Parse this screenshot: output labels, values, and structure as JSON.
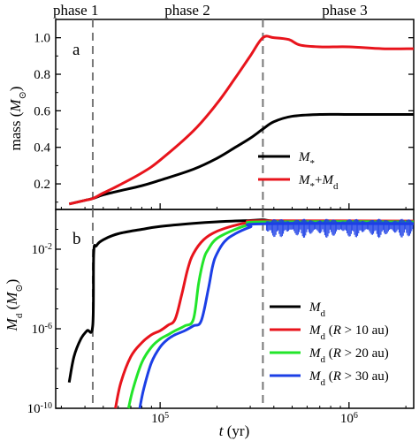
{
  "phases": [
    "phase 1",
    "phase 2",
    "phase 3"
  ],
  "colors": {
    "black": "#000000",
    "red": "#e8141c",
    "green": "#22e52a",
    "blue": "#1c3fe6",
    "dash": "#777777"
  },
  "chart_data": [
    {
      "type": "line",
      "panel": "a",
      "ylabel": "mass (M⊙)",
      "xscale": "log",
      "xlim": [
        28000,
        2200000
      ],
      "ylim": [
        0.06,
        1.1
      ],
      "yticks": [
        0.2,
        0.4,
        0.6,
        0.8,
        1.0
      ],
      "ytick_labels": [
        "0.2",
        "0.4",
        "0.6",
        "0.8",
        "1.0"
      ],
      "phase_boundaries": [
        44000,
        350000
      ],
      "series": [
        {
          "name": "M*",
          "color": "#000000",
          "x": [
            33000,
            40000,
            44000,
            50000,
            60000,
            80000,
            100000,
            150000,
            200000,
            250000,
            300000,
            350000,
            400000,
            500000,
            700000,
            1000000,
            1500000,
            2200000
          ],
          "y": [
            0.09,
            0.11,
            0.12,
            0.14,
            0.16,
            0.19,
            0.22,
            0.28,
            0.34,
            0.4,
            0.45,
            0.5,
            0.54,
            0.57,
            0.58,
            0.58,
            0.58,
            0.58
          ]
        },
        {
          "name": "M*+Md",
          "color": "#e8141c",
          "x": [
            33000,
            40000,
            44000,
            50000,
            60000,
            80000,
            100000,
            150000,
            200000,
            250000,
            300000,
            350000,
            400000,
            480000,
            550000,
            700000,
            1000000,
            1500000,
            2200000
          ],
          "y": [
            0.09,
            0.11,
            0.12,
            0.15,
            0.19,
            0.26,
            0.33,
            0.49,
            0.64,
            0.78,
            0.9,
            1.0,
            1.0,
            0.99,
            0.96,
            0.95,
            0.95,
            0.94,
            0.94
          ]
        }
      ]
    },
    {
      "type": "line",
      "panel": "b",
      "ylabel": "Md (M⊙)",
      "xlabel": "t (yr)",
      "xscale": "log",
      "yscale": "log",
      "xlim": [
        28000,
        2200000
      ],
      "ylim": [
        1e-10,
        1
      ],
      "xticks": [
        100000,
        1000000
      ],
      "xtick_labels": [
        "10^5",
        "10^6"
      ],
      "yticks": [
        1e-10,
        1e-06,
        0.01
      ],
      "ytick_labels": [
        "10^-10",
        "10^-6",
        "10^-2"
      ],
      "phase_boundaries": [
        44000,
        350000
      ],
      "series": [
        {
          "name": "Md",
          "color": "#000000",
          "x": [
            33000,
            35000,
            38000,
            41000,
            44000,
            44500,
            46000,
            50000,
            60000,
            80000,
            100000,
            150000,
            200000,
            300000,
            350000,
            400000,
            600000,
            1000000,
            2200000
          ],
          "y": [
            2e-09,
            4e-08,
            3e-07,
            8e-07,
            1.5e-06,
            0.006,
            0.015,
            0.03,
            0.06,
            0.1,
            0.14,
            0.2,
            0.24,
            0.28,
            0.3,
            0.26,
            0.24,
            0.23,
            0.23
          ]
        },
        {
          "name": "Md (R > 10 au)",
          "color": "#e8141c",
          "x": [
            58000,
            62000,
            70000,
            80000,
            90000,
            100000,
            110000,
            120000,
            130000,
            140000,
            150000,
            170000,
            200000,
            250000,
            300000,
            350000,
            2200000
          ],
          "y": [
            1e-10,
            2e-09,
            4e-08,
            2e-07,
            5e-07,
            8e-07,
            1.5e-06,
            3e-06,
            5e-05,
            0.001,
            0.006,
            0.03,
            0.08,
            0.16,
            0.23,
            0.27,
            0.26
          ]
        },
        {
          "name": "Md (R > 20 au)",
          "color": "#22e52a",
          "x": [
            68000,
            72000,
            80000,
            90000,
            100000,
            110000,
            120000,
            135000,
            150000,
            160000,
            170000,
            180000,
            200000,
            250000,
            300000,
            350000,
            2200000
          ],
          "y": [
            1e-10,
            1e-09,
            2e-08,
            1.2e-07,
            3e-07,
            5e-07,
            8e-07,
            1.4e-06,
            3e-06,
            0.0002,
            0.003,
            0.01,
            0.035,
            0.1,
            0.18,
            0.24,
            0.24
          ]
        },
        {
          "name": "Md (R > 30 au)",
          "color": "#1c3fe6",
          "x": [
            78000,
            82000,
            90000,
            100000,
            110000,
            120000,
            135000,
            150000,
            165000,
            180000,
            190000,
            200000,
            220000,
            250000,
            300000,
            350000,
            2200000
          ],
          "y": [
            1e-10,
            1e-09,
            2e-08,
            1.2e-07,
            3e-07,
            5e-07,
            8e-07,
            1.4e-06,
            2.5e-06,
            0.0001,
            0.0015,
            0.006,
            0.025,
            0.06,
            0.13,
            0.19,
            0.19
          ]
        }
      ]
    }
  ]
}
